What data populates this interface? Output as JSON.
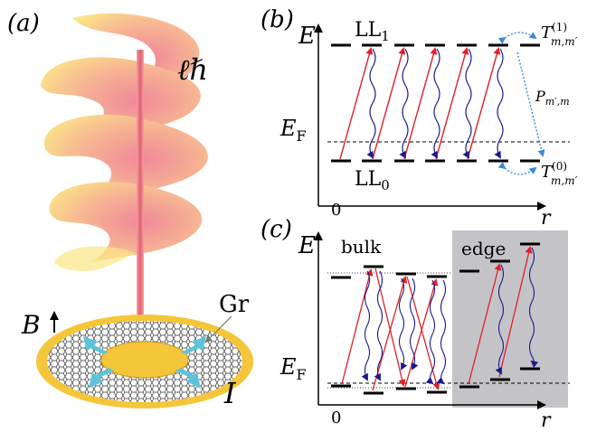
{
  "panel_a": {
    "label": "(a)",
    "oam_label": "ℓℏ",
    "graphene_label": "Gr",
    "field_label": "B",
    "current_label": "I"
  },
  "panel_b": {
    "label": "(b)",
    "energy_axis": "E",
    "position_axis": "r",
    "origin": "0",
    "fermi_label": "E",
    "fermi_sub": "F",
    "ll1_label": "LL",
    "ll1_sub": "1",
    "ll0_label": "LL",
    "ll0_sub": "0",
    "t1_label": "T",
    "t1_sup": "(1)",
    "t1_sub": "m,m′",
    "p_label": "P",
    "p_sub": "m′,m",
    "t0_label": "T",
    "t0_sup": "(0)",
    "t0_sub": "m,m′"
  },
  "panel_c": {
    "label": "(c)",
    "energy_axis": "E",
    "position_axis": "r",
    "origin": "0",
    "fermi_label": "E",
    "fermi_sub": "F",
    "bulk_label": "bulk",
    "edge_label": "edge"
  },
  "colors": {
    "absorption_arrow": "#e0202a",
    "emission_wave": "#1a1a8c",
    "scattering_arrow": "#3a8ad8",
    "edge_shading": "#c4c4c8",
    "disk_gold": "#f5c63a",
    "beam_pink": "#ec7f86"
  }
}
